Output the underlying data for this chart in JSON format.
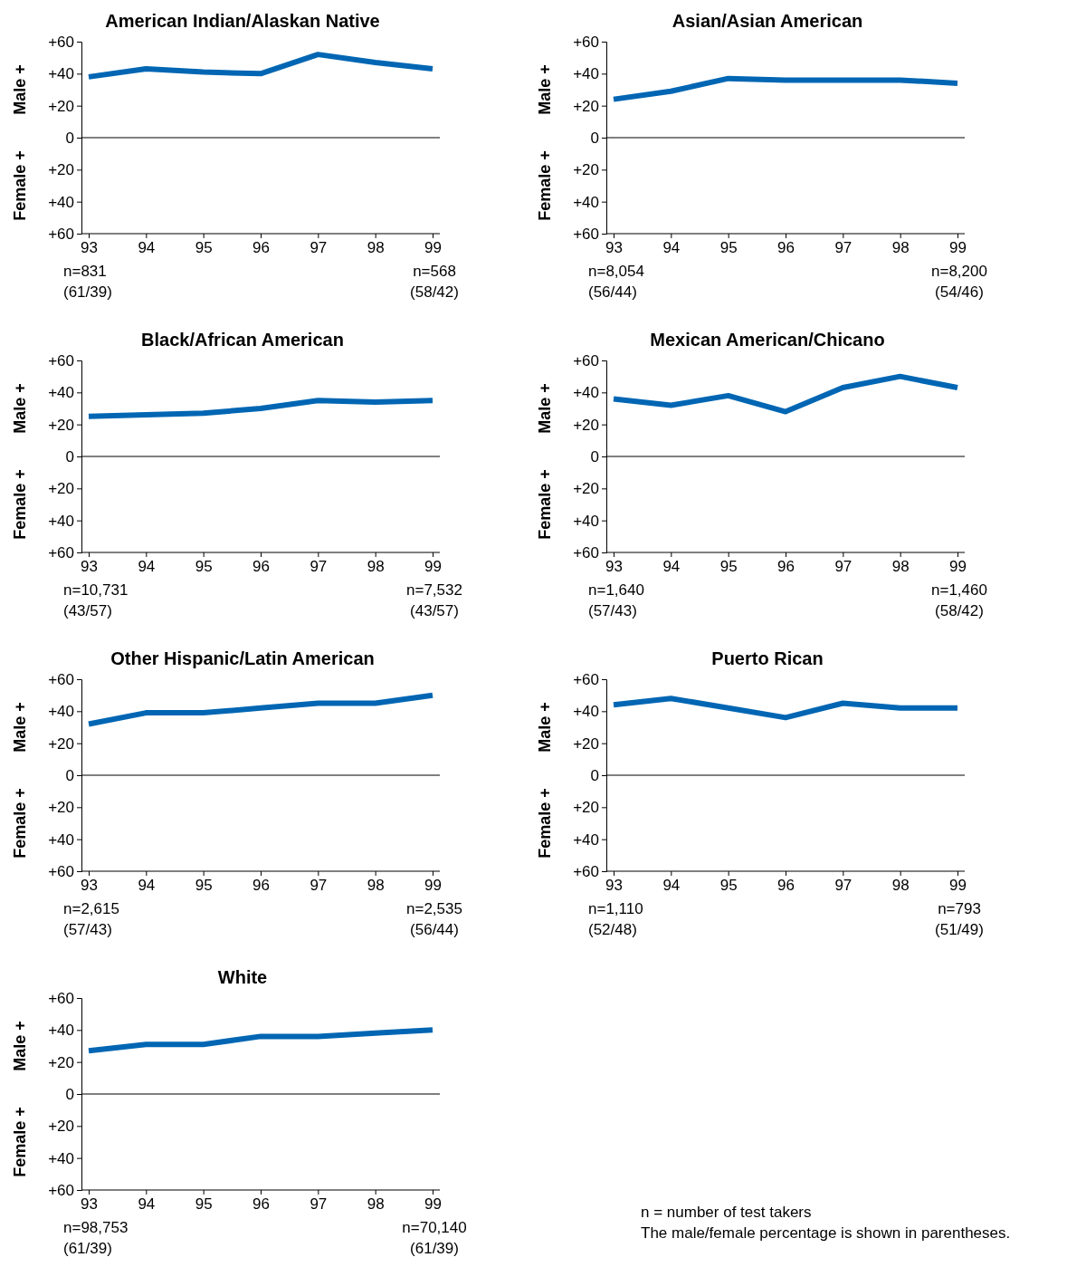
{
  "chart_data": [
    {
      "type": "line",
      "title": "American Indian/Alaskan Native",
      "ylabel": "Male +",
      "categories": [
        "93",
        "94",
        "95",
        "96",
        "97",
        "98",
        "99"
      ],
      "series": [
        {
          "color": "#0066b3",
          "values": [
            38,
            43,
            41,
            40,
            52,
            47,
            43
          ]
        }
      ],
      "ylim": [
        -60,
        60
      ],
      "yticks": [
        {
          "value": 60,
          "label": "+60"
        },
        {
          "value": 40,
          "label": "+40"
        },
        {
          "value": 20,
          "label": "+20"
        },
        {
          "value": 0,
          "label": "0"
        },
        {
          "value": -20,
          "label": "+20"
        },
        {
          "value": -40,
          "label": "+40"
        },
        {
          "value": -60,
          "label": "+60"
        }
      ],
      "ref_lines": [
        {
          "axis": "y",
          "value": 0,
          "color": "#000000"
        }
      ],
      "annotations": [
        "Female +",
        "n=831",
        "(61/39)",
        "n=568",
        "(58/42)"
      ]
    },
    {
      "type": "line",
      "title": "Asian/Asian American",
      "ylabel": "Male +",
      "categories": [
        "93",
        "94",
        "95",
        "96",
        "97",
        "98",
        "99"
      ],
      "series": [
        {
          "color": "#0066b3",
          "values": [
            24,
            29,
            37,
            36,
            36,
            36,
            34
          ]
        }
      ],
      "ylim": [
        -60,
        60
      ],
      "yticks": [
        {
          "value": 60,
          "label": "+60"
        },
        {
          "value": 40,
          "label": "+40"
        },
        {
          "value": 20,
          "label": "+20"
        },
        {
          "value": 0,
          "label": "0"
        },
        {
          "value": -20,
          "label": "+20"
        },
        {
          "value": -40,
          "label": "+40"
        },
        {
          "value": -60,
          "label": "+60"
        }
      ],
      "ref_lines": [
        {
          "axis": "y",
          "value": 0,
          "color": "#000000"
        }
      ],
      "annotations": [
        "Female +",
        "n=8,054",
        "(56/44)",
        "n=8,200",
        "(54/46)"
      ]
    },
    {
      "type": "line",
      "title": "Black/African American",
      "ylabel": "Male +",
      "categories": [
        "93",
        "94",
        "95",
        "96",
        "97",
        "98",
        "99"
      ],
      "series": [
        {
          "color": "#0066b3",
          "values": [
            25,
            26,
            27,
            30,
            35,
            34,
            35
          ]
        }
      ],
      "ylim": [
        -60,
        60
      ],
      "yticks": [
        {
          "value": 60,
          "label": "+60"
        },
        {
          "value": 40,
          "label": "+40"
        },
        {
          "value": 20,
          "label": "+20"
        },
        {
          "value": 0,
          "label": "0"
        },
        {
          "value": -20,
          "label": "+20"
        },
        {
          "value": -40,
          "label": "+40"
        },
        {
          "value": -60,
          "label": "+60"
        }
      ],
      "ref_lines": [
        {
          "axis": "y",
          "value": 0,
          "color": "#000000"
        }
      ],
      "annotations": [
        "Female +",
        "n=10,731",
        "(43/57)",
        "n=7,532",
        "(43/57)"
      ]
    },
    {
      "type": "line",
      "title": "Mexican American/Chicano",
      "ylabel": "Male +",
      "categories": [
        "93",
        "94",
        "95",
        "96",
        "97",
        "98",
        "99"
      ],
      "series": [
        {
          "color": "#0066b3",
          "values": [
            36,
            32,
            38,
            28,
            43,
            50,
            43
          ]
        }
      ],
      "ylim": [
        -60,
        60
      ],
      "yticks": [
        {
          "value": 60,
          "label": "+60"
        },
        {
          "value": 40,
          "label": "+40"
        },
        {
          "value": 20,
          "label": "+20"
        },
        {
          "value": 0,
          "label": "0"
        },
        {
          "value": -20,
          "label": "+20"
        },
        {
          "value": -40,
          "label": "+40"
        },
        {
          "value": -60,
          "label": "+60"
        }
      ],
      "ref_lines": [
        {
          "axis": "y",
          "value": 0,
          "color": "#000000"
        }
      ],
      "annotations": [
        "Female +",
        "n=1,640",
        "(57/43)",
        "n=1,460",
        "(58/42)"
      ]
    },
    {
      "type": "line",
      "title": "Other Hispanic/Latin American",
      "ylabel": "Male +",
      "categories": [
        "93",
        "94",
        "95",
        "96",
        "97",
        "98",
        "99"
      ],
      "series": [
        {
          "color": "#0066b3",
          "values": [
            32,
            39,
            39,
            42,
            45,
            45,
            50
          ]
        }
      ],
      "ylim": [
        -60,
        60
      ],
      "yticks": [
        {
          "value": 60,
          "label": "+60"
        },
        {
          "value": 40,
          "label": "+40"
        },
        {
          "value": 20,
          "label": "+20"
        },
        {
          "value": 0,
          "label": "0"
        },
        {
          "value": -20,
          "label": "+20"
        },
        {
          "value": -40,
          "label": "+40"
        },
        {
          "value": -60,
          "label": "+60"
        }
      ],
      "ref_lines": [
        {
          "axis": "y",
          "value": 0,
          "color": "#000000"
        }
      ],
      "annotations": [
        "Female +",
        "n=2,615",
        "(57/43)",
        "n=2,535",
        "(56/44)"
      ]
    },
    {
      "type": "line",
      "title": "Puerto Rican",
      "ylabel": "Male +",
      "categories": [
        "93",
        "94",
        "95",
        "96",
        "97",
        "98",
        "99"
      ],
      "series": [
        {
          "color": "#0066b3",
          "values": [
            44,
            48,
            42,
            36,
            45,
            42,
            42
          ]
        }
      ],
      "ylim": [
        -60,
        60
      ],
      "yticks": [
        {
          "value": 60,
          "label": "+60"
        },
        {
          "value": 40,
          "label": "+40"
        },
        {
          "value": 20,
          "label": "+20"
        },
        {
          "value": 0,
          "label": "0"
        },
        {
          "value": -20,
          "label": "+20"
        },
        {
          "value": -40,
          "label": "+40"
        },
        {
          "value": -60,
          "label": "+60"
        }
      ],
      "ref_lines": [
        {
          "axis": "y",
          "value": 0,
          "color": "#000000"
        }
      ],
      "annotations": [
        "Female +",
        "n=1,110",
        "(52/48)",
        "n=793",
        "(51/49)"
      ]
    },
    {
      "type": "line",
      "title": "White",
      "ylabel": "Male +",
      "categories": [
        "93",
        "94",
        "95",
        "96",
        "97",
        "98",
        "99"
      ],
      "series": [
        {
          "color": "#0066b3",
          "values": [
            27,
            31,
            31,
            36,
            36,
            38,
            40
          ]
        }
      ],
      "ylim": [
        -60,
        60
      ],
      "yticks": [
        {
          "value": 60,
          "label": "+60"
        },
        {
          "value": 40,
          "label": "+40"
        },
        {
          "value": 20,
          "label": "+20"
        },
        {
          "value": 0,
          "label": "0"
        },
        {
          "value": -20,
          "label": "+20"
        },
        {
          "value": -40,
          "label": "+40"
        },
        {
          "value": -60,
          "label": "+60"
        }
      ],
      "ref_lines": [
        {
          "axis": "y",
          "value": 0,
          "color": "#000000"
        }
      ],
      "annotations": [
        "Female +",
        "n=98,753",
        "(61/39)",
        "n=70,140",
        "(61/39)"
      ]
    },
    {
      "type": "other",
      "annotations": [
        "n = number of test takers",
        "The male/female percentage is shown in parentheses."
      ]
    }
  ]
}
